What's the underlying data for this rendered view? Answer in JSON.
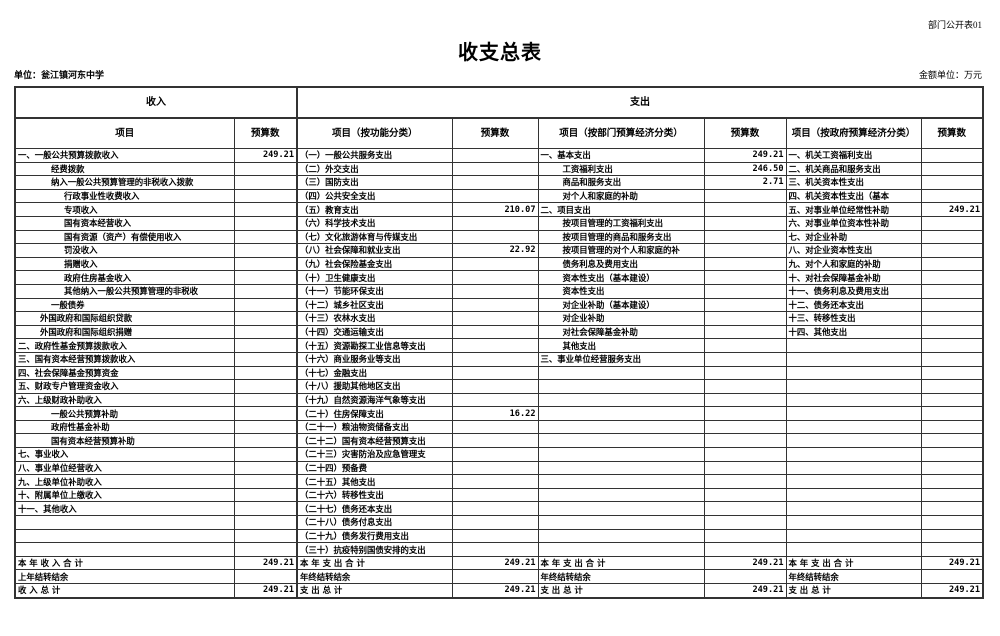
{
  "doc_code": "部门公开表01",
  "title": "收支总表",
  "unit": "单位：瓮江镇河东中学",
  "money_unit": "金额单位：万元",
  "header": {
    "income": "收入",
    "expense": "支出",
    "item": "项目",
    "budget": "预算数",
    "func_item": "项目（按功能分类）",
    "dept_item": "项目（按部门预算经济分类）",
    "gov_item": "项目（按政府预算经济分类）"
  },
  "income": [
    {
      "label": "一、一般公共预算拨款收入",
      "level": 0,
      "value": "249.21"
    },
    {
      "label": "经费拨款",
      "level": 2,
      "value": ""
    },
    {
      "label": "纳入一般公共预算管理的非税收入拨款",
      "level": 2,
      "value": ""
    },
    {
      "label": "行政事业性收费收入",
      "level": 3,
      "value": ""
    },
    {
      "label": "专项收入",
      "level": 3,
      "value": ""
    },
    {
      "label": "国有资本经营收入",
      "level": 3,
      "value": ""
    },
    {
      "label": "国有资源（资产）有偿使用收入",
      "level": 3,
      "value": ""
    },
    {
      "label": "罚没收入",
      "level": 3,
      "value": ""
    },
    {
      "label": "捐赠收入",
      "level": 3,
      "value": ""
    },
    {
      "label": "政府住房基金收入",
      "level": 3,
      "value": ""
    },
    {
      "label": "其他纳入一般公共预算管理的非税收",
      "level": 3,
      "value": ""
    },
    {
      "label": "一般债券",
      "level": 2,
      "value": ""
    },
    {
      "label": "外国政府和国际组织贷款",
      "level": 1,
      "value": ""
    },
    {
      "label": "外国政府和国际组织捐赠",
      "level": 1,
      "value": ""
    },
    {
      "label": "二、政府性基金预算拨款收入",
      "level": 0,
      "value": ""
    },
    {
      "label": "三、国有资本经营预算拨款收入",
      "level": 0,
      "value": ""
    },
    {
      "label": "四、社会保障基金预算资金",
      "level": 0,
      "value": ""
    },
    {
      "label": "五、财政专户管理资金收入",
      "level": 0,
      "value": ""
    },
    {
      "label": "六、上级财政补助收入",
      "level": 0,
      "value": ""
    },
    {
      "label": "一般公共预算补助",
      "level": 2,
      "value": ""
    },
    {
      "label": "政府性基金补助",
      "level": 2,
      "value": ""
    },
    {
      "label": "国有资本经营预算补助",
      "level": 2,
      "value": ""
    },
    {
      "label": "七、事业收入",
      "level": 0,
      "value": ""
    },
    {
      "label": "八、事业单位经营收入",
      "level": 0,
      "value": ""
    },
    {
      "label": "九、上级单位补助收入",
      "level": 0,
      "value": ""
    },
    {
      "label": "十、附属单位上缴收入",
      "level": 0,
      "value": ""
    },
    {
      "label": "十一、其他收入",
      "level": 0,
      "value": ""
    }
  ],
  "func": [
    {
      "label": "（一）一般公共服务支出",
      "value": ""
    },
    {
      "label": "（二）外交支出",
      "value": ""
    },
    {
      "label": "（三）国防支出",
      "value": ""
    },
    {
      "label": "（四）公共安全支出",
      "value": ""
    },
    {
      "label": "（五）教育支出",
      "value": "210.07"
    },
    {
      "label": "（六）科学技术支出",
      "value": ""
    },
    {
      "label": "（七）文化旅游体育与传媒支出",
      "value": ""
    },
    {
      "label": "（八）社会保障和就业支出",
      "value": "22.92"
    },
    {
      "label": "（九）社会保险基金支出",
      "value": ""
    },
    {
      "label": "（十）卫生健康支出",
      "value": ""
    },
    {
      "label": "（十一）节能环保支出",
      "value": ""
    },
    {
      "label": "（十二）城乡社区支出",
      "value": ""
    },
    {
      "label": "（十三）农林水支出",
      "value": ""
    },
    {
      "label": "（十四）交通运输支出",
      "value": ""
    },
    {
      "label": "（十五）资源勘探工业信息等支出",
      "value": ""
    },
    {
      "label": "（十六）商业服务业等支出",
      "value": ""
    },
    {
      "label": "（十七）金融支出",
      "value": ""
    },
    {
      "label": "（十八）援助其他地区支出",
      "value": ""
    },
    {
      "label": "（十九）自然资源海洋气象等支出",
      "value": ""
    },
    {
      "label": "（二十）住房保障支出",
      "value": "16.22"
    },
    {
      "label": "（二十一）粮油物资储备支出",
      "value": ""
    },
    {
      "label": "（二十二）国有资本经营预算支出",
      "value": ""
    },
    {
      "label": "（二十三）灾害防治及应急管理支",
      "value": ""
    },
    {
      "label": "（二十四）预备费",
      "value": ""
    },
    {
      "label": "（二十五）其他支出",
      "value": ""
    },
    {
      "label": "（二十六）转移性支出",
      "value": ""
    },
    {
      "label": "（二十七）债务还本支出",
      "value": ""
    },
    {
      "label": "（二十八）债务付息支出",
      "value": ""
    },
    {
      "label": "（二十九）债务发行费用支出",
      "value": ""
    },
    {
      "label": "（三十）抗疫特别国债安排的支出",
      "value": ""
    }
  ],
  "dept": [
    {
      "label": "一、基本支出",
      "level": 0,
      "value": "249.21"
    },
    {
      "label": "工资福利支出",
      "level": 1,
      "value": "246.50"
    },
    {
      "label": "商品和服务支出",
      "level": 1,
      "value": "2.71"
    },
    {
      "label": "对个人和家庭的补助",
      "level": 1,
      "value": ""
    },
    {
      "label": "二、项目支出",
      "level": 0,
      "value": ""
    },
    {
      "label": "按项目管理的工资福利支出",
      "level": 1,
      "value": ""
    },
    {
      "label": "按项目管理的商品和服务支出",
      "level": 1,
      "value": ""
    },
    {
      "label": "按项目管理的对个人和家庭的补",
      "level": 1,
      "value": ""
    },
    {
      "label": "债务利息及费用支出",
      "level": 1,
      "value": ""
    },
    {
      "label": "资本性支出（基本建设）",
      "level": 1,
      "value": ""
    },
    {
      "label": "资本性支出",
      "level": 1,
      "value": ""
    },
    {
      "label": "对企业补助（基本建设）",
      "level": 1,
      "value": ""
    },
    {
      "label": "对企业补助",
      "level": 1,
      "value": ""
    },
    {
      "label": "对社会保障基金补助",
      "level": 1,
      "value": ""
    },
    {
      "label": "其他支出",
      "level": 1,
      "value": ""
    },
    {
      "label": "三、事业单位经营服务支出",
      "level": 0,
      "value": ""
    }
  ],
  "gov": [
    {
      "label": "一、机关工资福利支出",
      "value": ""
    },
    {
      "label": "二、机关商品和服务支出",
      "value": ""
    },
    {
      "label": "三、机关资本性支出",
      "value": ""
    },
    {
      "label": "四、机关资本性支出（基本",
      "value": ""
    },
    {
      "label": "五、对事业单位经常性补助",
      "value": "249.21"
    },
    {
      "label": "六、对事业单位资本性补助",
      "value": ""
    },
    {
      "label": "七、对企业补助",
      "value": ""
    },
    {
      "label": "八、对企业资本性支出",
      "value": ""
    },
    {
      "label": "九、对个人和家庭的补助",
      "value": ""
    },
    {
      "label": "十、对社会保障基金补助",
      "value": ""
    },
    {
      "label": "十一、债务利息及费用支出",
      "value": ""
    },
    {
      "label": "十二、债务还本支出",
      "value": ""
    },
    {
      "label": "十三、转移性支出",
      "value": ""
    },
    {
      "label": "十四、其他支出",
      "value": ""
    }
  ],
  "totals": [
    {
      "inc": "本 年 收 入 合 计",
      "inc_v": "249.21",
      "exp": "本  年  支  出  合  计",
      "f_v": "249.21",
      "d_v": "249.21",
      "g_v": "249.21"
    },
    {
      "inc": "上年结转结余",
      "inc_v": "",
      "exp": "年终结转结余",
      "f_v": "",
      "d_v": "",
      "g_v": ""
    },
    {
      "inc": "收   入   总   计",
      "inc_v": "249.21",
      "exp": "支   出   总   计",
      "f_v": "249.21",
      "d_v": "249.21",
      "g_v": "249.21"
    }
  ]
}
